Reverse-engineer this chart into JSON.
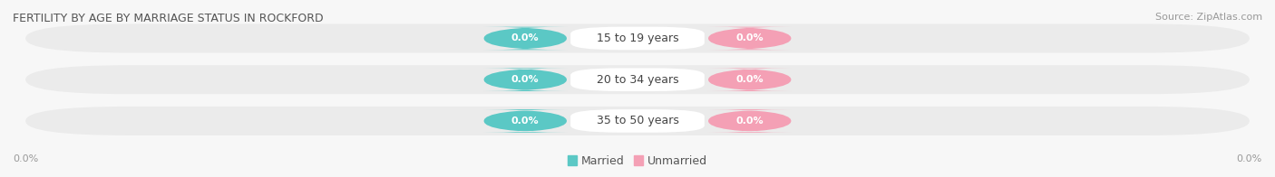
{
  "title": "FERTILITY BY AGE BY MARRIAGE STATUS IN ROCKFORD",
  "source": "Source: ZipAtlas.com",
  "categories": [
    "15 to 19 years",
    "20 to 34 years",
    "35 to 50 years"
  ],
  "married_values": [
    "0.0%",
    "0.0%",
    "0.0%"
  ],
  "unmarried_values": [
    "0.0%",
    "0.0%",
    "0.0%"
  ],
  "married_color": "#5bc8c5",
  "unmarried_color": "#f4a0b5",
  "bar_bg_color": "#ebebeb",
  "background_color": "#f7f7f7",
  "title_fontsize": 9,
  "source_fontsize": 8,
  "value_fontsize": 8,
  "category_fontsize": 9,
  "legend_fontsize": 9,
  "left_axis_label": "0.0%",
  "right_axis_label": "0.0%",
  "legend_married": "Married",
  "legend_unmarried": "Unmarried"
}
